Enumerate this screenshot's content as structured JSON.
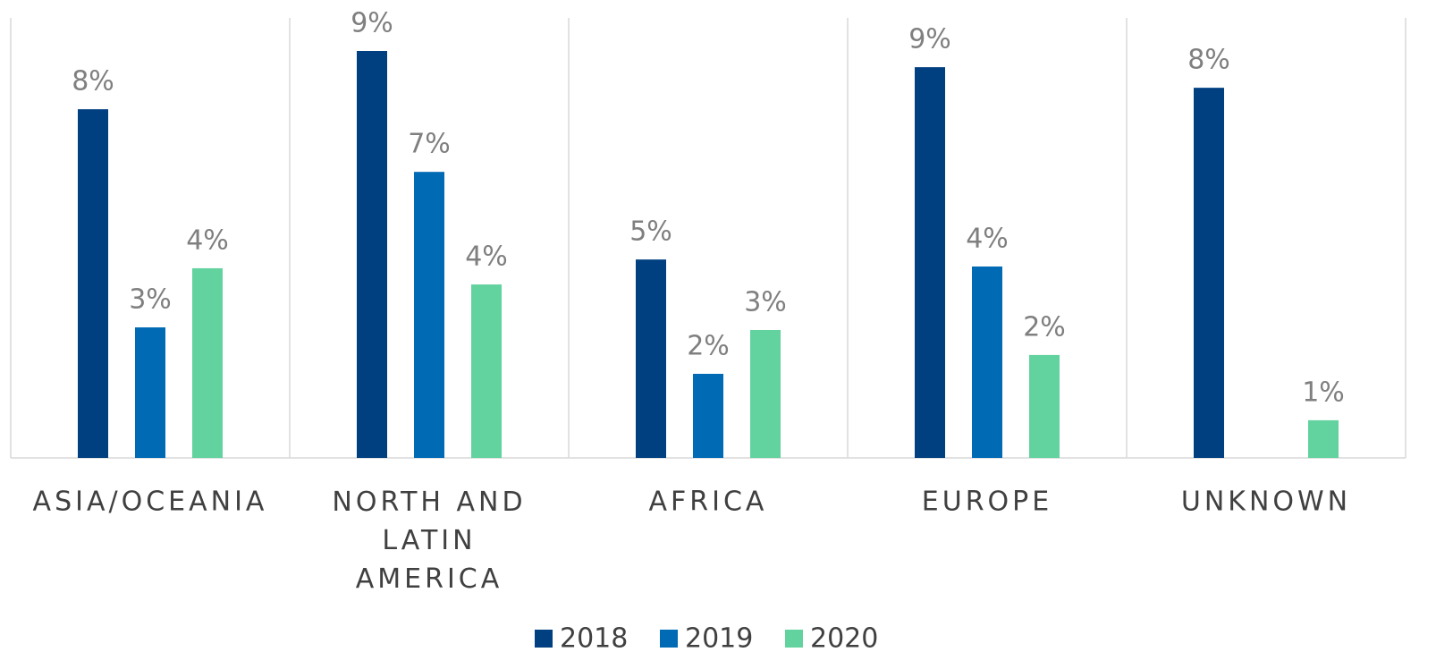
{
  "chart_data": {
    "type": "bar",
    "categories": [
      "ASIA/OCEANIA",
      "NORTH AND LATIN AMERICA",
      "AFRICA",
      "EUROPE",
      "UNKNOWN"
    ],
    "series": [
      {
        "name": "2018",
        "color": "#004080",
        "values": [
          7.96,
          9.29,
          4.53,
          8.92,
          8.45
        ],
        "value_labels": [
          "8%",
          "9%",
          "5%",
          "9%",
          "8%"
        ]
      },
      {
        "name": "2019",
        "color": "#006ab5",
        "values": [
          2.98,
          6.53,
          1.92,
          4.37,
          null
        ],
        "value_labels": [
          "3%",
          "7%",
          "2%",
          "4%",
          null
        ]
      },
      {
        "name": "2020",
        "color": "#62d29e",
        "values": [
          4.33,
          3.96,
          2.92,
          2.35,
          0.86
        ],
        "value_labels": [
          "4%",
          "4%",
          "3%",
          "2%",
          "1%"
        ]
      }
    ],
    "legend": "bottom"
  }
}
